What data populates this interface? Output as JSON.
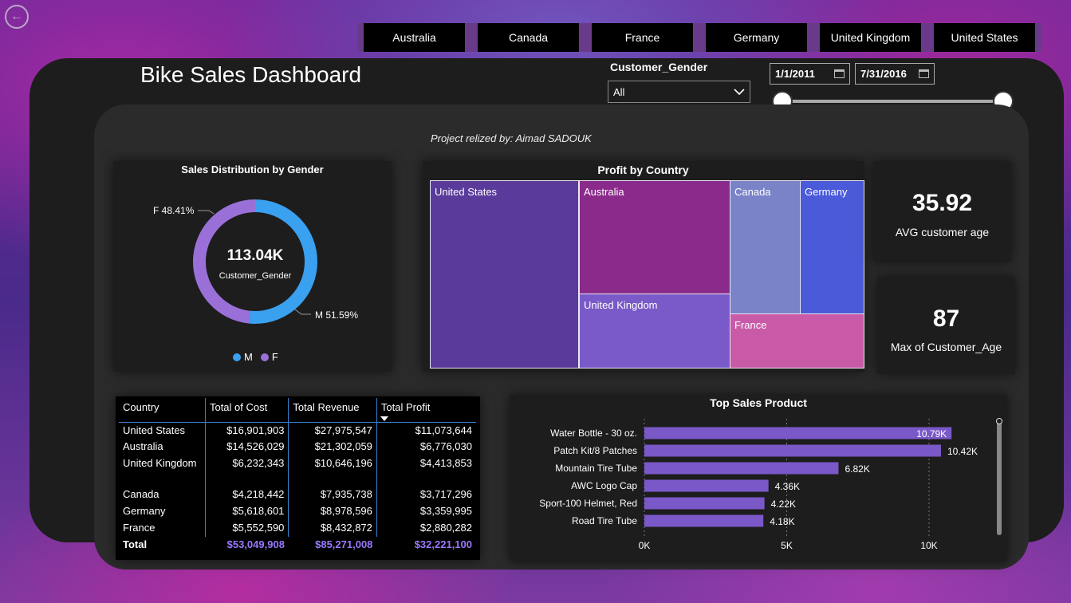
{
  "nav": {
    "back_icon": "back-arrow-icon",
    "back_glyph": "←"
  },
  "country_slicer": [
    "Australia",
    "Canada",
    "France",
    "Germany",
    "United Kingdom",
    "United States"
  ],
  "dashboard_title": "Bike Sales Dashboard",
  "gender_filter": {
    "label": "Customer_Gender",
    "value": "All"
  },
  "date_range": {
    "start": "1/1/2011",
    "end": "7/31/2016"
  },
  "credit": "Project relized by: Aimad SADOUK",
  "donut": {
    "title": "Sales Distribution by Gender",
    "center_value": "113.04K",
    "center_label": "Customer_Gender",
    "label_f": "F 48.41%",
    "label_m": "M 51.59%",
    "legend_m": "M",
    "legend_f": "F"
  },
  "treemap": {
    "title": "Profit by Country",
    "labels": {
      "us": "United States",
      "au": "Australia",
      "ca": "Canada",
      "de": "Germany",
      "uk": "United Kingdom",
      "fr": "France"
    }
  },
  "kpis": {
    "avg_age_value": "35.92",
    "avg_age_label": "AVG customer age",
    "max_age_value": "87",
    "max_age_label": "Max of Customer_Age"
  },
  "table": {
    "headers": [
      "Country",
      "Total of Cost",
      "Total Revenue",
      "Total Profit"
    ],
    "rows": [
      [
        "United States",
        "$16,901,903",
        "$27,975,547",
        "$11,073,644"
      ],
      [
        "Australia",
        "$14,526,029",
        "$21,302,059",
        "$6,776,030"
      ],
      [
        "United Kingdom",
        "$6,232,343",
        "$10,646,196",
        "$4,413,853"
      ],
      [
        "Canada",
        "$4,218,442",
        "$7,935,738",
        "$3,717,296"
      ],
      [
        "Germany",
        "$5,618,601",
        "$8,978,596",
        "$3,359,995"
      ],
      [
        "France",
        "$5,552,590",
        "$8,432,872",
        "$2,880,282"
      ]
    ],
    "total": [
      "Total",
      "$53,049,908",
      "$85,271,008",
      "$32,221,100"
    ]
  },
  "colors": {
    "m": "#3aa0f0",
    "f": "#9a70d8",
    "bar": "#7a58c8",
    "us": "#5a3a9a",
    "au": "#8a2a8a",
    "ca": "#7a82c8",
    "de": "#4a5ad8",
    "uk": "#7a5ac8",
    "fr": "#c85aa8"
  },
  "chart_data": [
    {
      "type": "pie",
      "title": "Sales Distribution by Gender",
      "categories": [
        "M",
        "F"
      ],
      "values": [
        51.59,
        48.41
      ],
      "total": "113.04K"
    },
    {
      "type": "treemap",
      "title": "Profit by Country",
      "categories": [
        "United States",
        "Australia",
        "United Kingdom",
        "Canada",
        "Germany",
        "France"
      ],
      "values": [
        11073644,
        6776030,
        4413853,
        3717296,
        3359995,
        2880282
      ]
    },
    {
      "type": "bar",
      "orientation": "horizontal",
      "title": "Top Sales Product",
      "categories": [
        "Water Bottle - 30 oz.",
        "Patch Kit/8 Patches",
        "Mountain Tire Tube",
        "AWC Logo Cap",
        "Sport-100 Helmet, Red",
        "Road Tire Tube"
      ],
      "values": [
        10790,
        10420,
        6820,
        4360,
        4220,
        4180
      ],
      "value_labels": [
        "10.79K",
        "10.42K",
        "6.82K",
        "4.36K",
        "4.22K",
        "4.18K"
      ],
      "xlim": [
        0,
        12000
      ],
      "xticks": [
        "0K",
        "5K",
        "10K"
      ],
      "grid": true
    }
  ]
}
